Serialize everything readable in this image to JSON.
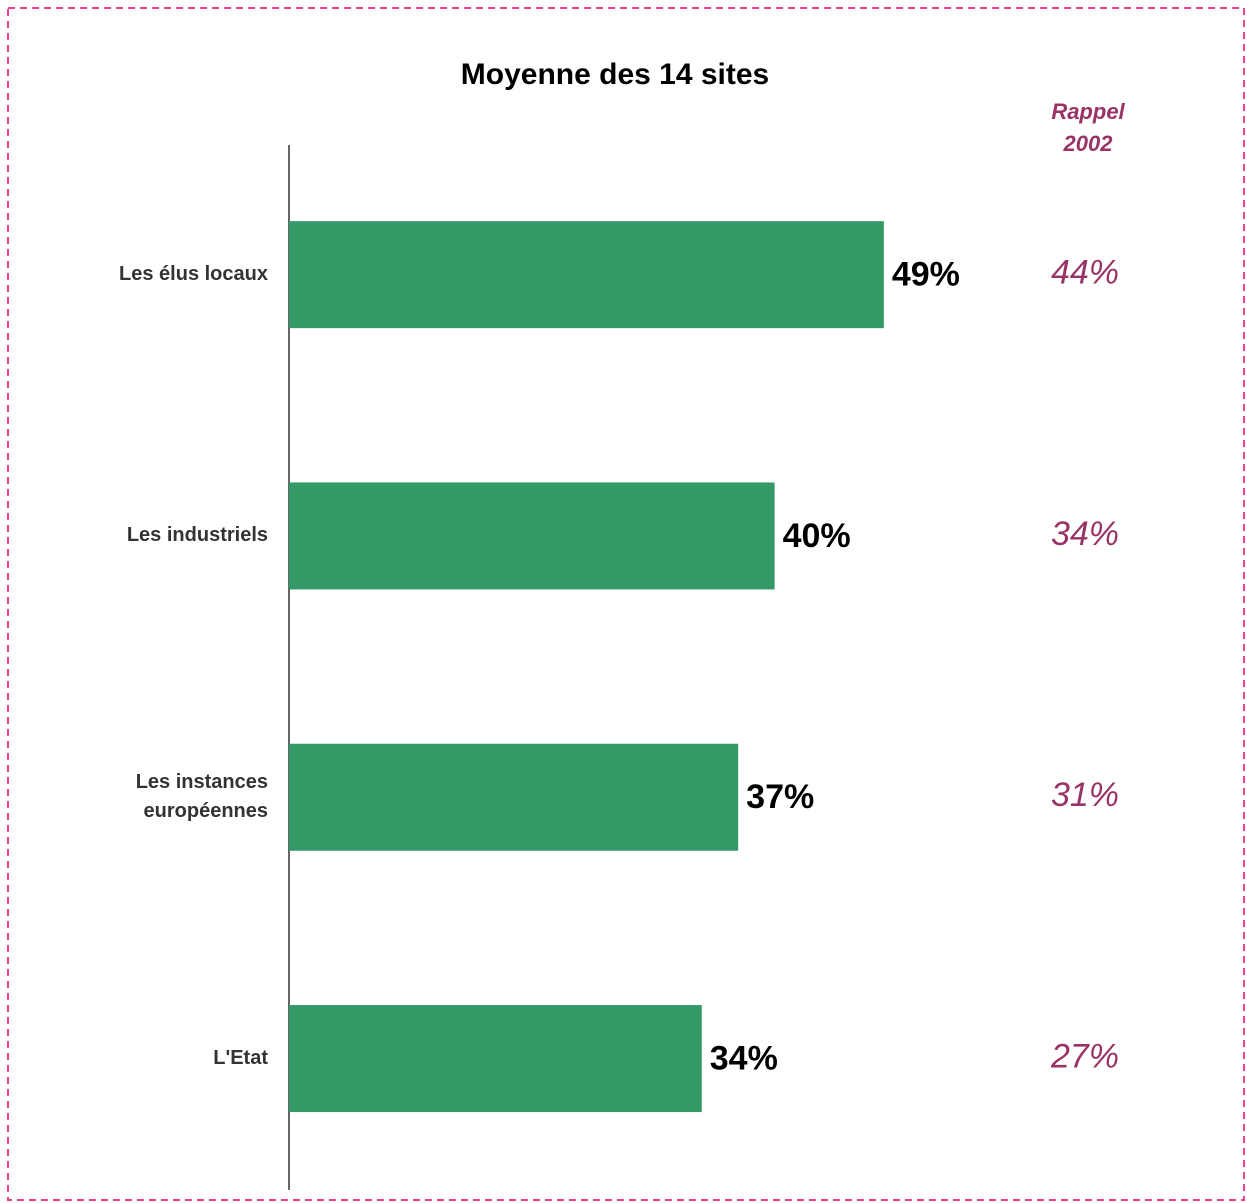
{
  "chart_data": {
    "type": "bar",
    "orientation": "horizontal",
    "title": "Moyenne des 14 sites",
    "categories": [
      "Les élus locaux",
      "Les industriels",
      "Les instances\neuropéennes",
      "L'Etat"
    ],
    "values": [
      49,
      40,
      37,
      34
    ],
    "value_labels": [
      "49%",
      "40%",
      "37%",
      "34%"
    ],
    "color": "#339966",
    "reference": {
      "title": "Rappel\n2002",
      "color": "#993366",
      "values": [
        44,
        34,
        31,
        27
      ],
      "value_labels": [
        "44%",
        "34%",
        "31%",
        "27%"
      ]
    }
  }
}
